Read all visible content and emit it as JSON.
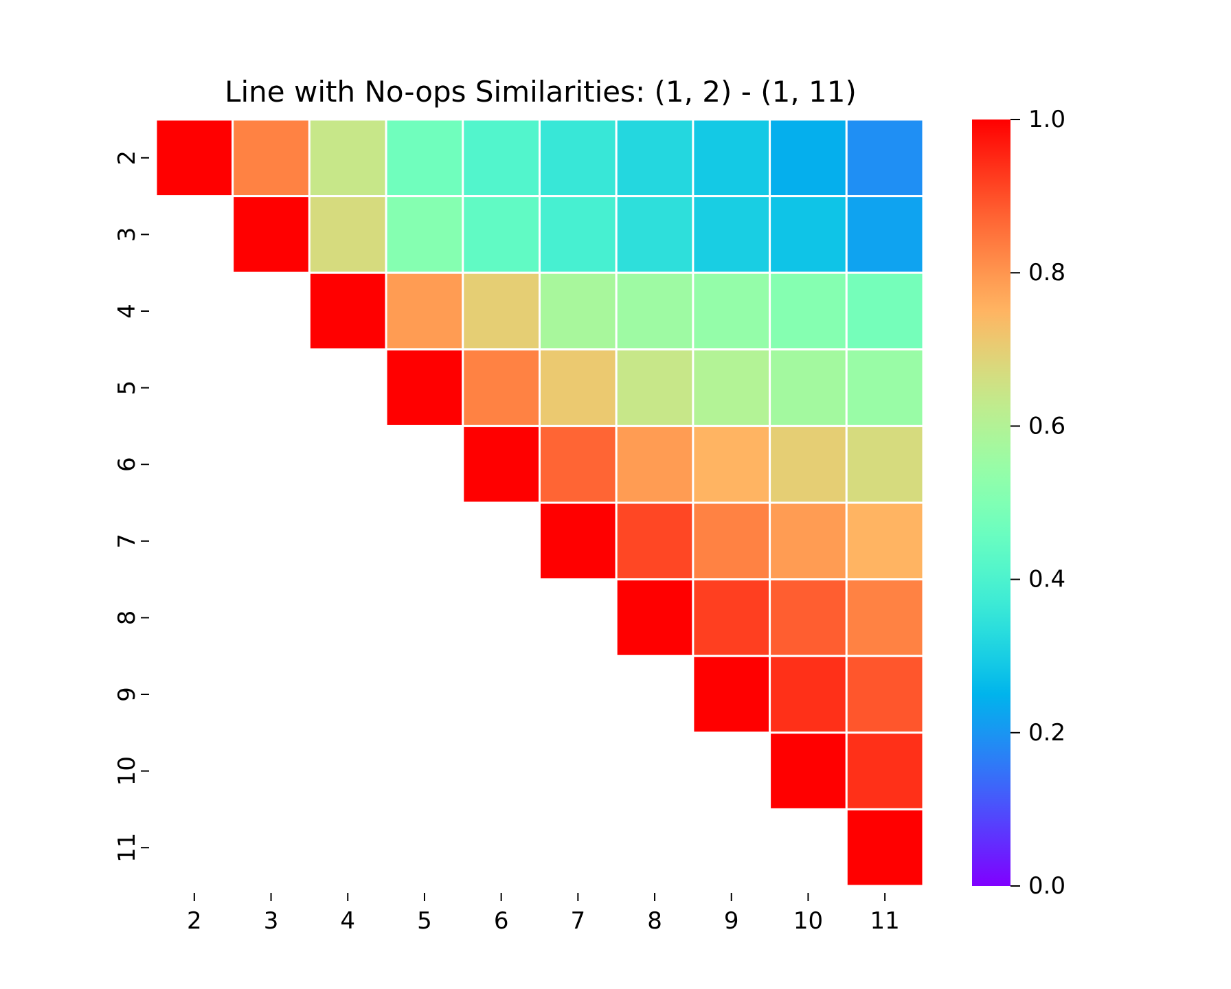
{
  "chart_data": {
    "type": "heatmap",
    "title": "Line with No-ops Similarities: (1, 2) - (1, 11)",
    "xlabel": "",
    "ylabel": "",
    "x_categories": [
      "2",
      "3",
      "4",
      "5",
      "6",
      "7",
      "8",
      "9",
      "10",
      "11"
    ],
    "y_categories": [
      "2",
      "3",
      "4",
      "5",
      "6",
      "7",
      "8",
      "9",
      "10",
      "11"
    ],
    "values": [
      [
        1.0,
        0.83,
        0.64,
        0.47,
        0.41,
        0.36,
        0.32,
        0.29,
        0.24,
        0.19
      ],
      [
        null,
        1.0,
        0.67,
        0.51,
        0.44,
        0.39,
        0.34,
        0.3,
        0.28,
        0.22
      ],
      [
        null,
        null,
        1.0,
        0.79,
        0.7,
        0.58,
        0.56,
        0.54,
        0.51,
        0.48
      ],
      [
        null,
        null,
        null,
        1.0,
        0.83,
        0.71,
        0.64,
        0.6,
        0.57,
        0.55
      ],
      [
        null,
        null,
        null,
        null,
        1.0,
        0.87,
        0.79,
        0.75,
        0.7,
        0.67
      ],
      [
        null,
        null,
        null,
        null,
        null,
        1.0,
        0.91,
        0.83,
        0.79,
        0.75
      ],
      [
        null,
        null,
        null,
        null,
        null,
        null,
        1.0,
        0.92,
        0.88,
        0.83
      ],
      [
        null,
        null,
        null,
        null,
        null,
        null,
        null,
        1.0,
        0.94,
        0.89
      ],
      [
        null,
        null,
        null,
        null,
        null,
        null,
        null,
        null,
        1.0,
        0.94
      ],
      [
        null,
        null,
        null,
        null,
        null,
        null,
        null,
        null,
        null,
        1.0
      ]
    ],
    "colorbar": {
      "min": 0.0,
      "max": 1.0,
      "ticks": [
        0.0,
        0.2,
        0.4,
        0.6,
        0.8,
        1.0
      ],
      "tick_labels": [
        "0.0",
        "0.2",
        "0.4",
        "0.6",
        "0.8",
        "1.0"
      ],
      "colormap": "rainbow"
    },
    "cell_border_color": "#ffffff",
    "grid": false
  }
}
